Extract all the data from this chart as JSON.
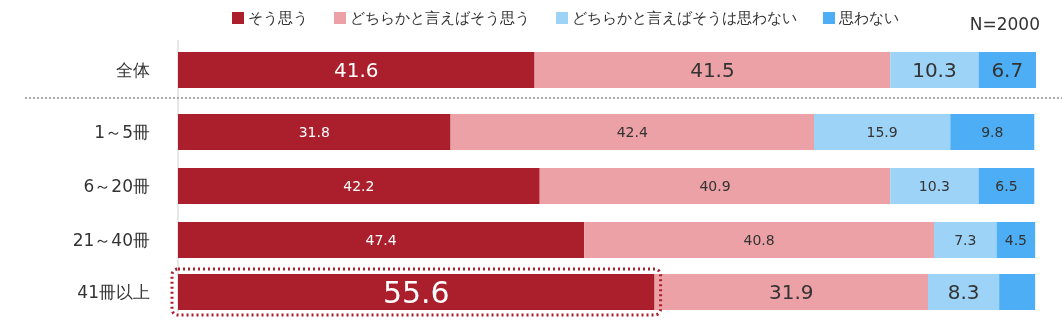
{
  "chart_data": {
    "type": "bar",
    "orientation": "horizontal",
    "stacked": true,
    "legend": "top",
    "categories": [
      "全体",
      "1～5冊",
      "6～20冊",
      "21～40冊",
      "41冊以上"
    ],
    "series": [
      {
        "name": "そう思う",
        "color": "#ab1f2d",
        "values": [
          41.6,
          31.8,
          42.2,
          47.4,
          55.6
        ],
        "value_labels": [
          "41.6",
          "31.8",
          "42.2",
          "47.4",
          "55.6"
        ]
      },
      {
        "name": "どちらかと言えばそう思う",
        "color": "#eba1a5",
        "values": [
          41.5,
          42.4,
          40.9,
          40.8,
          31.9
        ],
        "value_labels": [
          "41.5",
          "42.4",
          "40.9",
          "40.8",
          "31.9"
        ]
      },
      {
        "name": "どちらかと言えばそうは思わない",
        "color": "#9dd3f7",
        "values": [
          10.3,
          15.9,
          10.3,
          7.3,
          8.3
        ],
        "value_labels": [
          "10.3",
          "15.9",
          "10.3",
          "7.3",
          "8.3"
        ]
      },
      {
        "name": "思わない",
        "color": "#4daef5",
        "values": [
          6.7,
          9.8,
          6.5,
          4.5,
          4.2
        ],
        "value_labels": [
          "6.7",
          "9.8",
          "6.5",
          "4.5",
          null
        ]
      }
    ],
    "annotations": [
      "N=2000"
    ]
  }
}
